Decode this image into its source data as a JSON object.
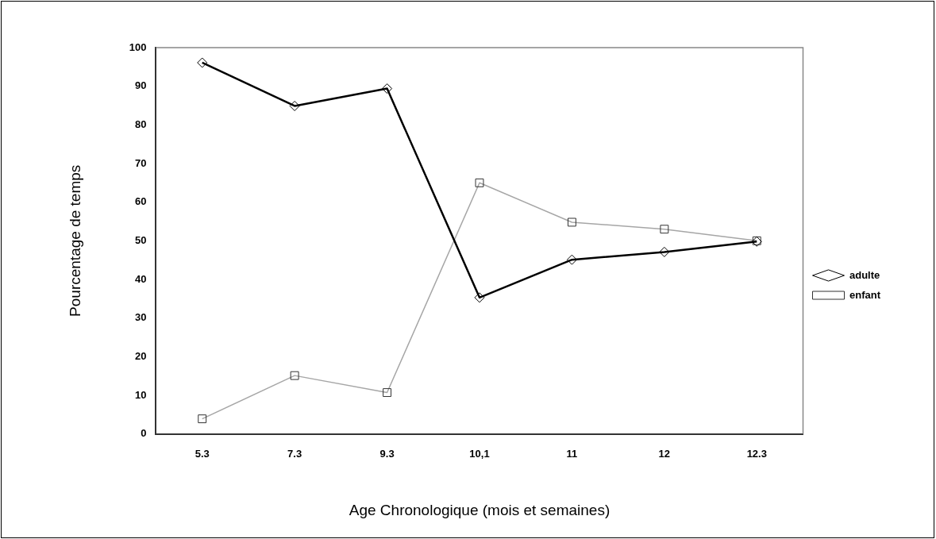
{
  "chart_data": {
    "type": "line",
    "xlabel": "Age Chronologique (mois et semaines)",
    "ylabel": "Pourcentage de temps",
    "categories": [
      "5.3",
      "7.3",
      "9.3",
      "10,1",
      "11",
      "12",
      "12.3"
    ],
    "series": [
      {
        "name": "adulte",
        "color": "#000000",
        "marker": "diamond",
        "values": [
          96.1,
          84.9,
          89.4,
          35.3,
          45.1,
          47.1,
          49.8
        ]
      },
      {
        "name": "enfant",
        "color": "#a6a6a6",
        "marker": "square",
        "values": [
          3.9,
          15.1,
          10.7,
          65,
          54.8,
          53,
          50
        ]
      }
    ],
    "ylim": [
      0,
      100
    ],
    "yticks": [
      0,
      10,
      20,
      30,
      40,
      50,
      60,
      70,
      80,
      90,
      100
    ],
    "grid": false,
    "legend": "right",
    "line_style": "solid"
  }
}
